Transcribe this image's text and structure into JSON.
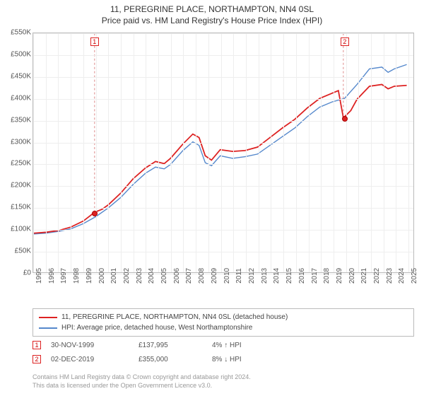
{
  "title": {
    "main": "11, PEREGRINE PLACE, NORTHAMPTON, NN4 0SL",
    "sub": "Price paid vs. HM Land Registry's House Price Index (HPI)"
  },
  "chart": {
    "type": "line",
    "background_color": "#ffffff",
    "grid_color": "#eeeeee",
    "border_color": "#bbbbbb",
    "x_years": [
      1995,
      1996,
      1997,
      1998,
      1999,
      2000,
      2001,
      2002,
      2003,
      2004,
      2005,
      2006,
      2007,
      2008,
      2009,
      2010,
      2011,
      2012,
      2013,
      2014,
      2015,
      2016,
      2017,
      2018,
      2019,
      2020,
      2021,
      2022,
      2023,
      2024,
      2025
    ],
    "y_ticks": [
      0,
      50,
      100,
      150,
      200,
      250,
      300,
      350,
      400,
      450,
      500,
      550
    ],
    "y_tick_labels": [
      "£0",
      "£50K",
      "£100K",
      "£150K",
      "£200K",
      "£250K",
      "£300K",
      "£350K",
      "£400K",
      "£450K",
      "£500K",
      "£550K"
    ],
    "ylim": [
      0,
      550
    ],
    "xlim": [
      1995,
      2025.5
    ],
    "series": [
      {
        "name": "property",
        "label": "11, PEREGRINE PLACE, NORTHAMPTON, NN4 0SL (detached house)",
        "color": "#dd2222",
        "width": 1.8,
        "points": [
          [
            1995.0,
            90
          ],
          [
            1996.0,
            92
          ],
          [
            1997.0,
            96
          ],
          [
            1998.0,
            104
          ],
          [
            1999.0,
            118
          ],
          [
            1999.9,
            138
          ],
          [
            2000.5,
            145
          ],
          [
            2001.0,
            155
          ],
          [
            2002.0,
            182
          ],
          [
            2003.0,
            215
          ],
          [
            2004.0,
            240
          ],
          [
            2004.8,
            255
          ],
          [
            2005.5,
            250
          ],
          [
            2006.0,
            262
          ],
          [
            2007.0,
            295
          ],
          [
            2007.8,
            318
          ],
          [
            2008.3,
            310
          ],
          [
            2008.8,
            268
          ],
          [
            2009.3,
            258
          ],
          [
            2010.0,
            282
          ],
          [
            2011.0,
            278
          ],
          [
            2012.0,
            280
          ],
          [
            2013.0,
            288
          ],
          [
            2014.0,
            310
          ],
          [
            2015.0,
            332
          ],
          [
            2016.0,
            352
          ],
          [
            2017.0,
            378
          ],
          [
            2018.0,
            400
          ],
          [
            2019.0,
            412
          ],
          [
            2019.5,
            418
          ],
          [
            2019.9,
            355
          ],
          [
            2020.5,
            372
          ],
          [
            2021.0,
            398
          ],
          [
            2022.0,
            428
          ],
          [
            2023.0,
            432
          ],
          [
            2023.5,
            422
          ],
          [
            2024.0,
            428
          ],
          [
            2025.0,
            430
          ]
        ]
      },
      {
        "name": "hpi",
        "label": "HPI: Average price, detached house, West Northamptonshire",
        "color": "#5588cc",
        "width": 1.4,
        "points": [
          [
            1995.0,
            88
          ],
          [
            1996.0,
            90
          ],
          [
            1997.0,
            94
          ],
          [
            1998.0,
            100
          ],
          [
            1999.0,
            112
          ],
          [
            2000.0,
            128
          ],
          [
            2001.0,
            148
          ],
          [
            2002.0,
            172
          ],
          [
            2003.0,
            202
          ],
          [
            2004.0,
            228
          ],
          [
            2004.8,
            242
          ],
          [
            2005.5,
            238
          ],
          [
            2006.0,
            248
          ],
          [
            2007.0,
            280
          ],
          [
            2007.8,
            300
          ],
          [
            2008.3,
            292
          ],
          [
            2008.8,
            252
          ],
          [
            2009.3,
            245
          ],
          [
            2010.0,
            268
          ],
          [
            2011.0,
            262
          ],
          [
            2012.0,
            266
          ],
          [
            2013.0,
            272
          ],
          [
            2014.0,
            292
          ],
          [
            2015.0,
            312
          ],
          [
            2016.0,
            332
          ],
          [
            2017.0,
            358
          ],
          [
            2018.0,
            380
          ],
          [
            2019.0,
            392
          ],
          [
            2020.0,
            400
          ],
          [
            2021.0,
            432
          ],
          [
            2022.0,
            468
          ],
          [
            2023.0,
            472
          ],
          [
            2023.5,
            460
          ],
          [
            2024.0,
            468
          ],
          [
            2025.0,
            478
          ]
        ]
      }
    ],
    "markers": [
      {
        "n": "1",
        "x": 1999.9,
        "y": 138
      },
      {
        "n": "2",
        "x": 2019.9,
        "y": 355
      }
    ]
  },
  "legend": {
    "rows": [
      {
        "color": "#dd2222",
        "label": "11, PEREGRINE PLACE, NORTHAMPTON, NN4 0SL (detached house)"
      },
      {
        "color": "#5588cc",
        "label": "HPI: Average price, detached house, West Northamptonshire"
      }
    ]
  },
  "transactions": [
    {
      "n": "1",
      "date": "30-NOV-1999",
      "price": "£137,995",
      "delta": "4% ↑ HPI"
    },
    {
      "n": "2",
      "date": "02-DEC-2019",
      "price": "£355,000",
      "delta": "8% ↓ HPI"
    }
  ],
  "footer": {
    "line1": "Contains HM Land Registry data © Crown copyright and database right 2024.",
    "line2": "This data is licensed under the Open Government Licence v3.0."
  },
  "fontsize": {
    "title": 12,
    "axis": 10,
    "legend": 10,
    "footer": 9
  }
}
